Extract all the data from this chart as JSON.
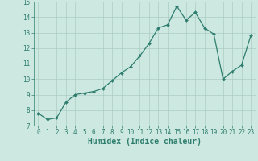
{
  "x": [
    0,
    1,
    2,
    3,
    4,
    5,
    6,
    7,
    8,
    9,
    10,
    11,
    12,
    13,
    14,
    15,
    16,
    17,
    18,
    19,
    20,
    21,
    22,
    23
  ],
  "y": [
    7.8,
    7.4,
    7.5,
    8.5,
    9.0,
    9.1,
    9.2,
    9.4,
    9.9,
    10.4,
    10.8,
    11.5,
    12.3,
    13.3,
    13.5,
    14.7,
    13.8,
    14.3,
    13.3,
    12.9,
    10.0,
    10.5,
    10.9,
    12.8
  ],
  "line_color": "#2e7d6e",
  "marker": "D",
  "markersize": 2.0,
  "linewidth": 0.9,
  "bg_color": "#cce8e0",
  "grid_color": "#aaccc4",
  "xlabel": "Humidex (Indice chaleur)",
  "ylabel": "",
  "xlim": [
    -0.5,
    23.5
  ],
  "ylim": [
    7,
    15
  ],
  "yticks": [
    7,
    8,
    9,
    10,
    11,
    12,
    13,
    14,
    15
  ],
  "xticks": [
    0,
    1,
    2,
    3,
    4,
    5,
    6,
    7,
    8,
    9,
    10,
    11,
    12,
    13,
    14,
    15,
    16,
    17,
    18,
    19,
    20,
    21,
    22,
    23
  ],
  "tick_color": "#2e7d6e",
  "tick_fontsize": 5.5,
  "xlabel_fontsize": 7.0
}
